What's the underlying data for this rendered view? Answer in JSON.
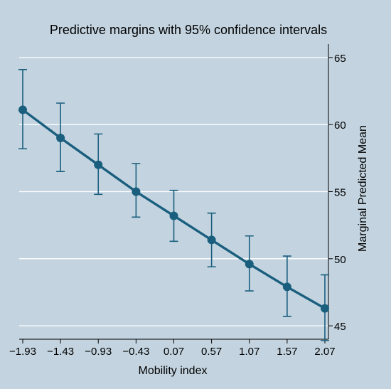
{
  "chart_data": {
    "type": "line",
    "title": "Predictive margins with 95% confidence intervals",
    "xlabel": "Mobility index",
    "ylabel": "Marginal Predicted Mean",
    "x": [
      -1.93,
      -1.43,
      -0.93,
      -0.43,
      0.07,
      0.57,
      1.07,
      1.57,
      2.07
    ],
    "x_tick_labels": [
      "−1.93",
      "−1.43",
      "−0.93",
      "−0.43",
      "0.07",
      "0.57",
      "1.07",
      "1.57",
      "2.07"
    ],
    "y_ticks": [
      45,
      50,
      55,
      60,
      65
    ],
    "y_tick_labels": [
      "45",
      "50",
      "55",
      "60",
      "65"
    ],
    "ylim": [
      44,
      66
    ],
    "y_axis_position": "right",
    "grid": true,
    "series": [
      {
        "values": [
          61.1,
          59.0,
          57.0,
          55.0,
          53.2,
          51.4,
          49.6,
          47.9,
          46.3
        ],
        "ci_lower": [
          58.2,
          56.5,
          54.8,
          53.1,
          51.3,
          49.4,
          47.6,
          45.7,
          43.9
        ],
        "ci_upper": [
          64.1,
          61.6,
          59.3,
          57.1,
          55.1,
          53.4,
          51.7,
          50.2,
          48.8
        ]
      }
    ],
    "colors": {
      "background": "#c3d4e0",
      "series": "#1a5e7e",
      "grid": "#ffffff"
    }
  }
}
